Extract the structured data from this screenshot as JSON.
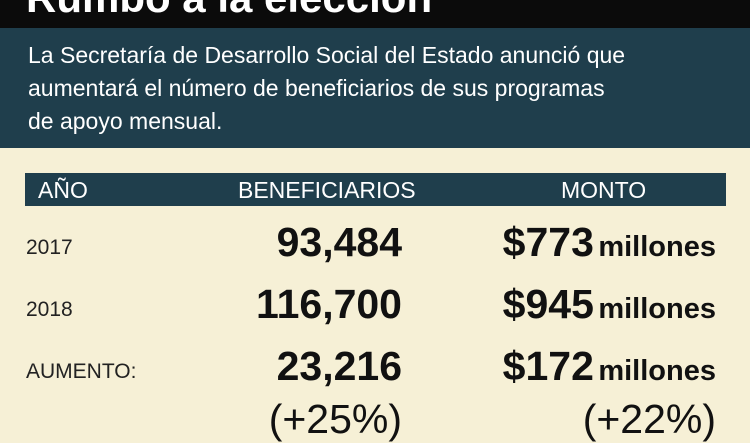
{
  "header": {
    "title": "Rumbo a la elección",
    "intro_lines": [
      "La Secretaría de Desarrollo Social del Estado anunció que",
      "aumentará el número de beneficiarios de sus programas",
      "de apoyo mensual."
    ]
  },
  "table": {
    "columns": [
      "AÑO",
      "BENEFICIARIOS",
      "MONTO"
    ],
    "rows": [
      {
        "label": "2017",
        "beneficiarios": "93,484",
        "monto": "$773",
        "unit": "millones"
      },
      {
        "label": "2018",
        "beneficiarios": "116,700",
        "monto": "$945",
        "unit": "millones"
      },
      {
        "label": "AUMENTO:",
        "beneficiarios": "23,216",
        "beneficiarios_change": "(+25%)",
        "monto": "$172",
        "unit": "millones",
        "monto_change": "(+22%)"
      }
    ]
  }
}
